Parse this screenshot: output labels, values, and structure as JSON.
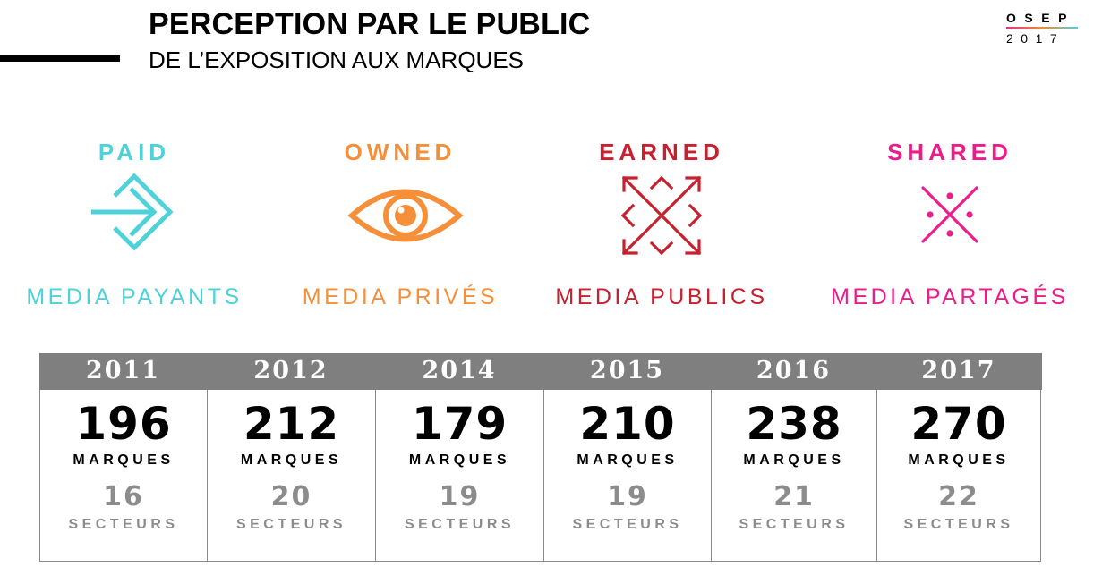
{
  "header": {
    "title": "PERCEPTION PAR LE PUBLIC",
    "subtitle": "DE L’EXPOSITION AUX MARQUES"
  },
  "logo": {
    "top": "OSEP",
    "bottom": "2017"
  },
  "media": [
    {
      "heading": "PAID",
      "label": "MEDIA PAYANTS",
      "color": "#4fd1d9",
      "icon": "arrow-in-diamond-icon"
    },
    {
      "heading": "OWNED",
      "label": "MEDIA PRIVÉS",
      "color": "#f58f3a",
      "icon": "eye-icon"
    },
    {
      "heading": "EARNED",
      "label": "MEDIA PUBLICS",
      "color": "#c8202f",
      "icon": "expand-arrows-icon"
    },
    {
      "heading": "SHARED",
      "label": "MEDIA PARTAGÉS",
      "color": "#ec1c8c",
      "icon": "share-cross-icon"
    }
  ],
  "table": {
    "brands_unit": "MARQUES",
    "sectors_unit": "SECTEURS",
    "rows": [
      {
        "year": "2011",
        "brands": "196",
        "sectors": "16"
      },
      {
        "year": "2012",
        "brands": "212",
        "sectors": "20"
      },
      {
        "year": "2014",
        "brands": "179",
        "sectors": "19"
      },
      {
        "year": "2015",
        "brands": "210",
        "sectors": "19"
      },
      {
        "year": "2016",
        "brands": "238",
        "sectors": "21"
      },
      {
        "year": "2017",
        "brands": "270",
        "sectors": "22"
      }
    ]
  }
}
